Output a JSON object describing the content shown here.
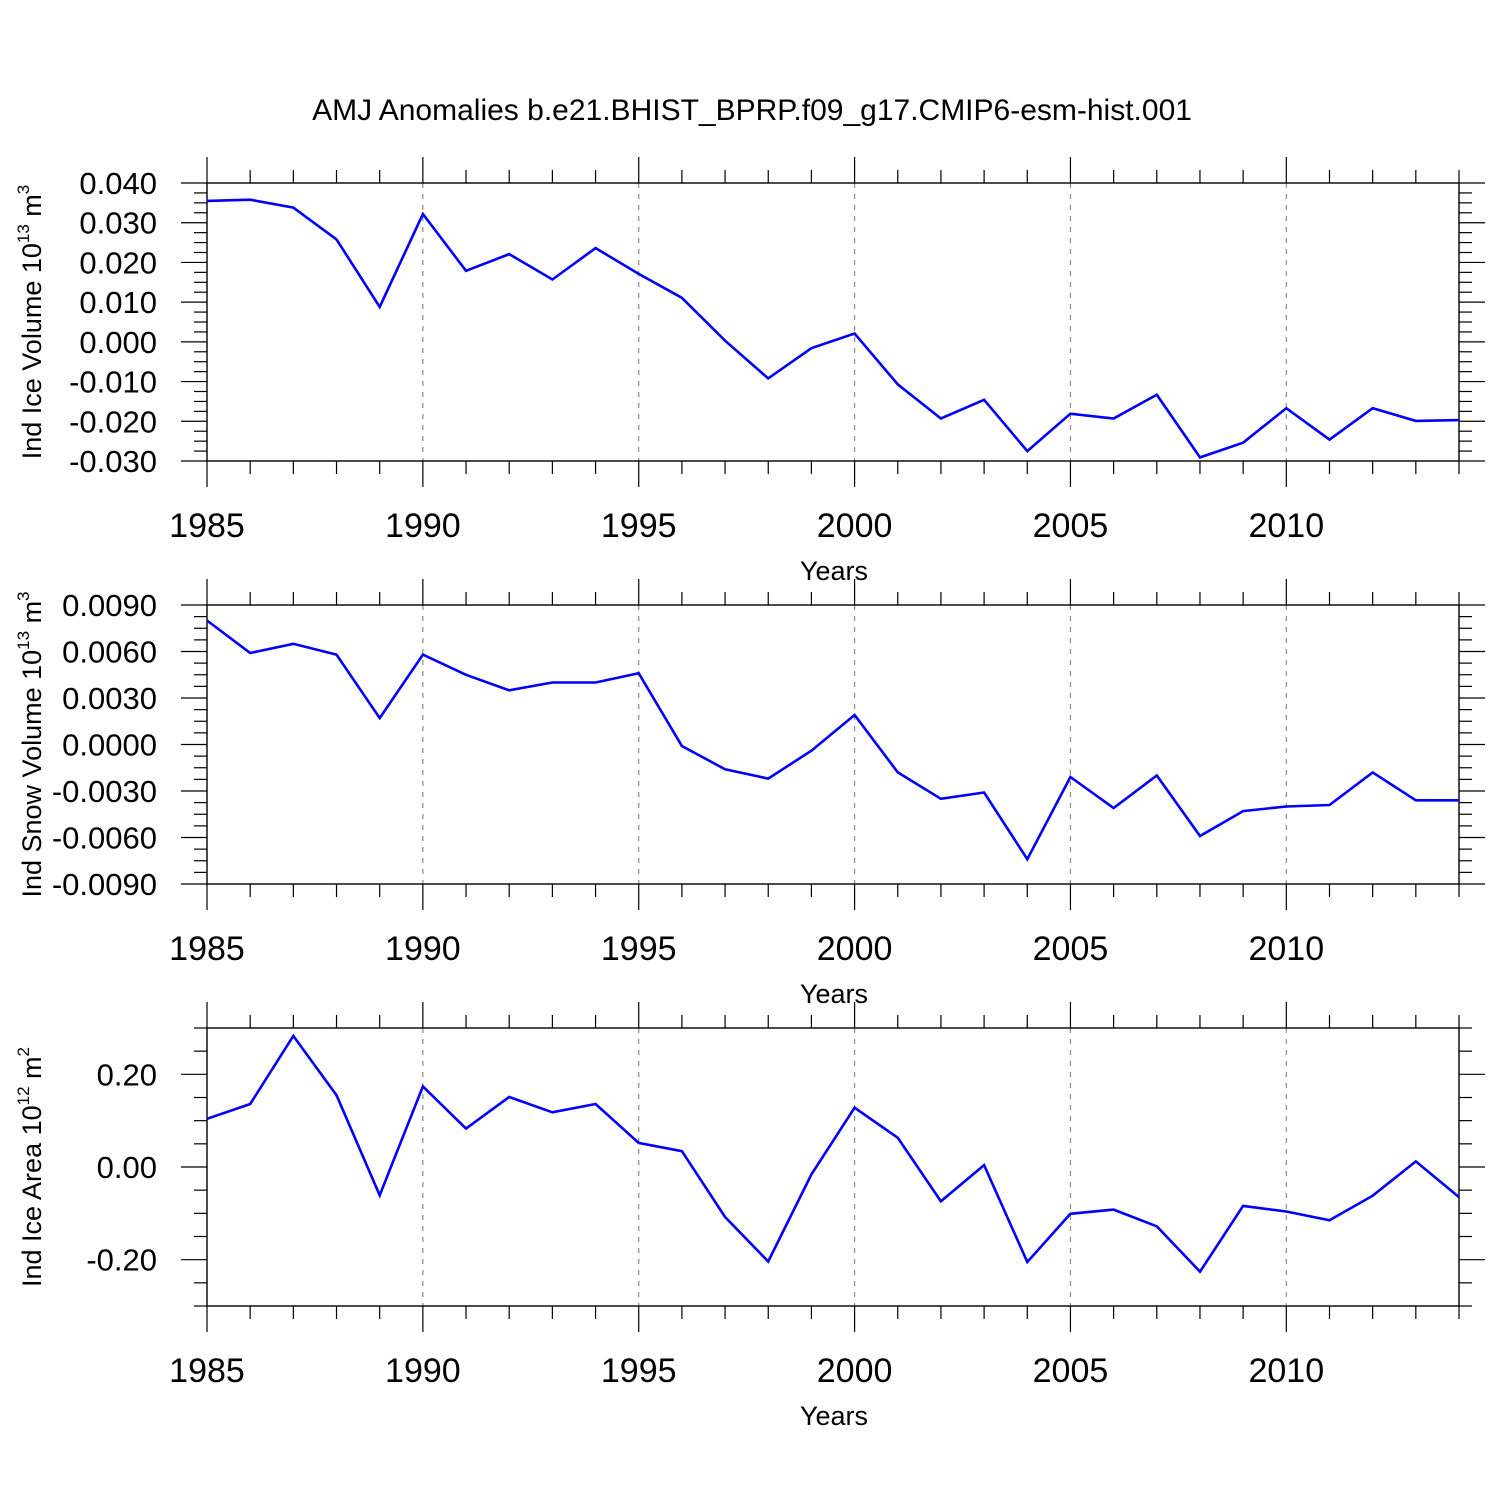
{
  "title": "AMJ Anomalies b.e21.BHIST_BPRP.f09_g17.CMIP6-esm-hist.001",
  "colors": {
    "line": "#0000ff",
    "axis": "#000000",
    "grid": "#8c8c8c"
  },
  "chart_data": [
    {
      "type": "line",
      "name": "ind-ice-volume",
      "ylabel": {
        "text": "Ind Ice Volume 10",
        "sup": "13",
        "unit": " m",
        "unit_sup": "3"
      },
      "xlabel": "Years",
      "xlim": [
        1985,
        2014
      ],
      "ylim": [
        -0.03,
        0.04
      ],
      "yticks": [
        -0.03,
        -0.02,
        -0.01,
        0.0,
        0.01,
        0.02,
        0.03,
        0.04
      ],
      "ytick_labels": [
        "-0.030",
        "-0.020",
        "-0.010",
        "0.000",
        "0.010",
        "0.020",
        "0.030",
        "0.040"
      ],
      "xticks": [
        1985,
        1990,
        1995,
        2000,
        2005,
        2010
      ],
      "xtick_labels": [
        "1985",
        "1990",
        "1995",
        "2000",
        "2005",
        "2010"
      ],
      "grid_x": [
        1990,
        1995,
        2000,
        2005,
        2010
      ],
      "x": [
        1985,
        1986,
        1987,
        1988,
        1989,
        1990,
        1991,
        1992,
        1993,
        1994,
        1995,
        1996,
        1997,
        1998,
        1999,
        2000,
        2001,
        2002,
        2003,
        2004,
        2005,
        2006,
        2007,
        2008,
        2009,
        2010,
        2011,
        2012,
        2013,
        2014
      ],
      "values": [
        0.0355,
        0.0358,
        0.0338,
        0.0258,
        0.0088,
        0.0322,
        0.0179,
        0.0221,
        0.0157,
        0.0236,
        0.0171,
        0.0111,
        0.0003,
        -0.0092,
        -0.0016,
        0.0021,
        -0.0107,
        -0.0193,
        -0.0146,
        -0.0275,
        -0.0181,
        -0.0193,
        -0.0133,
        -0.0291,
        -0.0254,
        -0.0167,
        -0.0246,
        -0.0167,
        -0.0199,
        -0.0197
      ]
    },
    {
      "type": "line",
      "name": "ind-snow-volume",
      "ylabel": {
        "text": "Ind Snow Volume 10",
        "sup": "13",
        "unit": " m",
        "unit_sup": "3"
      },
      "xlabel": "Years",
      "xlim": [
        1985,
        2014
      ],
      "ylim": [
        -0.009,
        0.009
      ],
      "yticks": [
        -0.009,
        -0.006,
        -0.003,
        0.0,
        0.003,
        0.006,
        0.009
      ],
      "ytick_labels": [
        "-0.0090",
        "-0.0060",
        "-0.0030",
        "0.0000",
        "0.0030",
        "0.0060",
        "0.0090"
      ],
      "xticks": [
        1985,
        1990,
        1995,
        2000,
        2005,
        2010
      ],
      "xtick_labels": [
        "1985",
        "1990",
        "1995",
        "2000",
        "2005",
        "2010"
      ],
      "grid_x": [
        1990,
        1995,
        2000,
        2005,
        2010
      ],
      "x": [
        1985,
        1986,
        1987,
        1988,
        1989,
        1990,
        1991,
        1992,
        1993,
        1994,
        1995,
        1996,
        1997,
        1998,
        1999,
        2000,
        2001,
        2002,
        2003,
        2004,
        2005,
        2006,
        2007,
        2008,
        2009,
        2010,
        2011,
        2012,
        2013,
        2014
      ],
      "values": [
        0.008,
        0.0059,
        0.0065,
        0.0058,
        0.0017,
        0.0058,
        0.0045,
        0.0035,
        0.004,
        0.004,
        0.0046,
        -0.0001,
        -0.0016,
        -0.0022,
        -0.0004,
        0.0019,
        -0.0018,
        -0.0035,
        -0.0031,
        -0.0074,
        -0.0021,
        -0.0041,
        -0.002,
        -0.0059,
        -0.0043,
        -0.004,
        -0.0039,
        -0.0018,
        -0.0036,
        -0.0036
      ]
    },
    {
      "type": "line",
      "name": "ind-ice-area",
      "ylabel": {
        "text": "Ind Ice Area 10",
        "sup": "12",
        "unit": " m",
        "unit_sup": "2"
      },
      "xlabel": "Years",
      "xlim": [
        1985,
        2014
      ],
      "ylim": [
        -0.3,
        0.3
      ],
      "yticks": [
        -0.2,
        0.0,
        0.2
      ],
      "ytick_labels": [
        "-0.20",
        "0.00",
        "0.20"
      ],
      "xticks": [
        1985,
        1990,
        1995,
        2000,
        2005,
        2010
      ],
      "xtick_labels": [
        "1985",
        "1990",
        "1995",
        "2000",
        "2005",
        "2010"
      ],
      "grid_x": [
        1990,
        1995,
        2000,
        2005,
        2010
      ],
      "x": [
        1985,
        1986,
        1987,
        1988,
        1989,
        1990,
        1991,
        1992,
        1993,
        1994,
        1995,
        1996,
        1997,
        1998,
        1999,
        2000,
        2001,
        2002,
        2003,
        2004,
        2005,
        2006,
        2007,
        2008,
        2009,
        2010,
        2011,
        2012,
        2013,
        2014
      ],
      "values": [
        0.104,
        0.136,
        0.283,
        0.155,
        -0.061,
        0.174,
        0.083,
        0.151,
        0.118,
        0.136,
        0.052,
        0.034,
        -0.108,
        -0.204,
        -0.016,
        0.128,
        0.063,
        -0.074,
        0.004,
        -0.205,
        -0.101,
        -0.092,
        -0.128,
        -0.226,
        -0.084,
        -0.096,
        -0.115,
        -0.062,
        0.012,
        -0.065
      ]
    }
  ]
}
